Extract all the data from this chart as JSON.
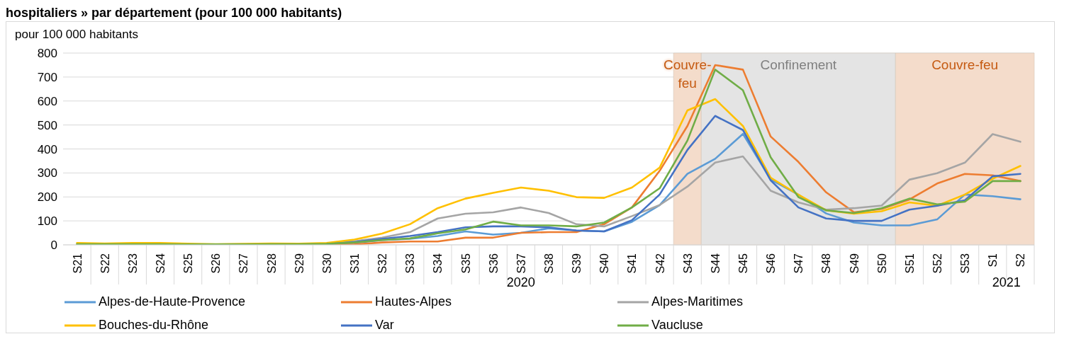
{
  "chart_data": {
    "type": "line",
    "title": "hospitaliers » par département (pour 100 000 habitants)",
    "ylabel": "pour 100 000 habitants",
    "categories": [
      "S21",
      "S22",
      "S23",
      "S24",
      "S25",
      "S26",
      "S27",
      "S28",
      "S29",
      "S30",
      "S31",
      "S32",
      "S33",
      "S34",
      "S35",
      "S36",
      "S37",
      "S38",
      "S39",
      "S40",
      "S41",
      "S42",
      "S43",
      "S44",
      "S45",
      "S46",
      "S47",
      "S48",
      "S49",
      "S50",
      "S51",
      "S52",
      "S53",
      "S1",
      "S2"
    ],
    "series": [
      {
        "name": "Alpes-de-Haute-Provence",
        "color": "#5b9bd5",
        "values": [
          null,
          null,
          null,
          null,
          null,
          null,
          null,
          null,
          null,
          3,
          8,
          20,
          25,
          37,
          56,
          43,
          50,
          69,
          60,
          56,
          96,
          166,
          296,
          359,
          463,
          273,
          209,
          131,
          93,
          81,
          81,
          106,
          210,
          203,
          190
        ]
      },
      {
        "name": "Hautes-Alpes",
        "color": "#ed7d31",
        "values": [
          null,
          null,
          null,
          null,
          null,
          null,
          null,
          null,
          1,
          1,
          2,
          10,
          14,
          14,
          30,
          30,
          50,
          53,
          53,
          86,
          156,
          309,
          496,
          750,
          731,
          452,
          346,
          219,
          136,
          150,
          189,
          256,
          296,
          290,
          266
        ]
      },
      {
        "name": "Alpes-Maritimes",
        "color": "#a5a5a5",
        "values": [
          3,
          3,
          2,
          2,
          2,
          2,
          3,
          3,
          4,
          6,
          15,
          30,
          53,
          110,
          130,
          136,
          156,
          133,
          86,
          77,
          120,
          166,
          243,
          343,
          369,
          226,
          177,
          147,
          153,
          164,
          272,
          299,
          343,
          462,
          430
        ]
      },
      {
        "name": "Bouches-du-Rhône",
        "color": "#ffc000",
        "values": [
          8,
          6,
          8,
          8,
          5,
          3,
          4,
          6,
          5,
          8,
          22,
          47,
          86,
          153,
          193,
          217,
          239,
          226,
          199,
          196,
          239,
          322,
          561,
          608,
          496,
          280,
          209,
          144,
          130,
          140,
          177,
          163,
          210,
          276,
          329
        ]
      },
      {
        "name": "Var",
        "color": "#4472c4",
        "values": [
          null,
          null,
          null,
          null,
          null,
          null,
          null,
          null,
          null,
          3,
          12,
          25,
          37,
          53,
          73,
          77,
          77,
          73,
          60,
          56,
          103,
          210,
          396,
          538,
          479,
          269,
          156,
          110,
          100,
          100,
          147,
          163,
          186,
          286,
          296
        ]
      },
      {
        "name": "Vaucluse",
        "color": "#70ad47",
        "values": [
          3,
          3,
          3,
          3,
          2,
          2,
          2,
          3,
          3,
          4,
          10,
          20,
          27,
          48,
          64,
          97,
          81,
          81,
          77,
          93,
          156,
          236,
          435,
          731,
          645,
          365,
          199,
          144,
          133,
          153,
          193,
          169,
          180,
          266,
          266
        ]
      }
    ],
    "ylim": [
      0,
      800
    ],
    "yticks": [
      0,
      100,
      200,
      300,
      400,
      500,
      600,
      700,
      800
    ],
    "grid": "y",
    "legend": "bottom",
    "bands": [
      {
        "axis": "x",
        "from": "S43",
        "to": "S43",
        "label": "Couvre-feu",
        "color": "#f4dccb"
      },
      {
        "axis": "x",
        "from": "S44",
        "to": "S50",
        "label": "Confinement",
        "color": "#e4e4e4"
      },
      {
        "axis": "x",
        "from": "S51",
        "to": "S2",
        "label": "Couvre-feu",
        "color": "#f4dccb"
      }
    ],
    "annotations": [
      "2020",
      "2021"
    ]
  }
}
